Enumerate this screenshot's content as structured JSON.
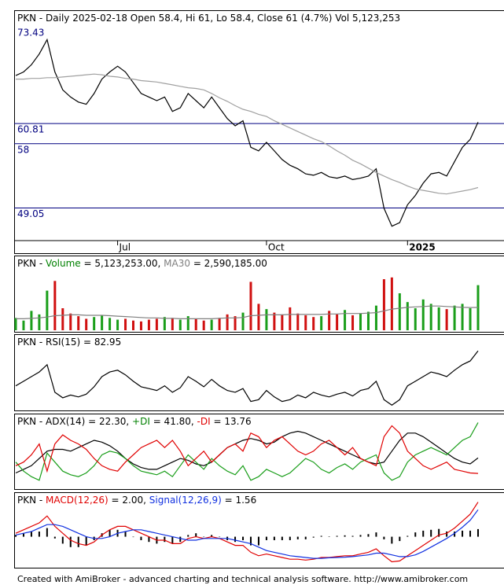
{
  "chart_data": [
    {
      "type": "price",
      "title_parts": [
        {
          "text": "PKN - Daily 2025-02-18 Open 58.4, Hi 61, Lo 58.4, Close 61 (4.7%) Vol 5,123,253",
          "color": "#000000"
        }
      ],
      "categories": [
        null,
        null,
        null,
        null,
        null,
        null,
        null,
        null,
        null,
        null,
        null,
        null,
        null,
        "Jul",
        null,
        null,
        null,
        null,
        null,
        null,
        null,
        null,
        null,
        null,
        null,
        null,
        null,
        null,
        null,
        null,
        null,
        null,
        "Oct",
        null,
        null,
        null,
        null,
        null,
        null,
        null,
        null,
        null,
        null,
        null,
        null,
        null,
        null,
        null,
        null,
        null,
        "2025",
        null,
        null,
        null,
        null,
        null,
        null,
        null,
        null,
        null
      ],
      "ylim": [
        44.5,
        76.6
      ],
      "levels": [
        60.81,
        58,
        49.05
      ],
      "level_color": "#000080",
      "max_label": 73.43,
      "series": [
        {
          "color": "#000000",
          "values": [
            67.5,
            68,
            69,
            70.5,
            72.5,
            68,
            65.5,
            64.5,
            63.8,
            63.5,
            65,
            67,
            68,
            68.8,
            68,
            66.5,
            65,
            64.5,
            64,
            64.5,
            62.5,
            63,
            65,
            64,
            63,
            64.5,
            63,
            61.5,
            60.5,
            61.2,
            57.5,
            57,
            58.2,
            57,
            55.8,
            55,
            54.5,
            53.8,
            53.6,
            54,
            53.4,
            53.2,
            53.5,
            53,
            53.2,
            53.5,
            54.5,
            49,
            46.5,
            47,
            49.5,
            50.8,
            52.5,
            53.8,
            54,
            53.5,
            55.5,
            57.5,
            58.6,
            61
          ]
        },
        {
          "color": "#a0a0a0",
          "values": [
            67,
            67,
            67.1,
            67.1,
            67.2,
            67.2,
            67.3,
            67.4,
            67.5,
            67.6,
            67.7,
            67.6,
            67.4,
            67.3,
            67.1,
            67,
            66.8,
            66.7,
            66.6,
            66.4,
            66.2,
            66,
            65.8,
            65.7,
            65.5,
            65,
            64.4,
            63.9,
            63.3,
            62.8,
            62.5,
            62.1,
            61.8,
            61.2,
            60.7,
            60.2,
            59.7,
            59.2,
            58.7,
            58.3,
            57.7,
            57,
            56.4,
            55.7,
            55.2,
            54.6,
            54,
            53.5,
            53,
            52.6,
            52.1,
            51.7,
            51.5,
            51.3,
            51.1,
            51,
            51.2,
            51.4,
            51.6,
            51.9
          ]
        }
      ]
    },
    {
      "type": "volume",
      "title_parts": [
        {
          "text": "PKN - ",
          "color": "#000000"
        },
        {
          "text": "Volume",
          "color": "#008000"
        },
        {
          "text": " = 5,123,253.00, ",
          "color": "#000000"
        },
        {
          "text": "MA30",
          "color": "#808080"
        },
        {
          "text": " = 2,590,185.00",
          "color": "#000000"
        }
      ],
      "ylim": [
        0,
        6700000
      ],
      "up_color": "#1a9e1a",
      "down_color": "#d01010",
      "series": [
        {
          "style": "bar",
          "values": [
            1400000,
            1100000,
            2200000,
            1800000,
            4500000,
            5600000,
            2500000,
            1900000,
            1600000,
            1300000,
            1500000,
            1700000,
            1400000,
            1200000,
            1300000,
            1100000,
            1000000,
            1200000,
            1300000,
            1500000,
            1400000,
            1200000,
            1600000,
            1300000,
            1100000,
            1200000,
            1400000,
            1800000,
            1600000,
            2000000,
            5500000,
            3000000,
            2400000,
            2000000,
            1800000,
            2600000,
            1900000,
            1700000,
            1500000,
            1600000,
            2200000,
            1800000,
            2300000,
            1700000,
            1900000,
            2100000,
            2800000,
            5800000,
            6000000,
            4200000,
            3200000,
            2500000,
            3500000,
            3000000,
            2600000,
            2400000,
            2800000,
            3000000,
            2500000,
            5123253
          ]
        },
        {
          "style": "line",
          "color": "#808080",
          "values": [
            1300000,
            1300000,
            1350000,
            1400000,
            1500000,
            1650000,
            1700000,
            1750000,
            1750000,
            1700000,
            1700000,
            1700000,
            1650000,
            1600000,
            1550000,
            1500000,
            1450000,
            1400000,
            1400000,
            1350000,
            1350000,
            1300000,
            1300000,
            1300000,
            1300000,
            1300000,
            1350000,
            1400000,
            1400000,
            1450000,
            1650000,
            1700000,
            1750000,
            1750000,
            1750000,
            1800000,
            1800000,
            1800000,
            1800000,
            1800000,
            1850000,
            1850000,
            1900000,
            1900000,
            1900000,
            1950000,
            2000000,
            2200000,
            2400000,
            2500000,
            2600000,
            2650000,
            2700000,
            2750000,
            2750000,
            2700000,
            2650000,
            2600000,
            2580000,
            2590185
          ]
        }
      ]
    },
    {
      "type": "line",
      "title_parts": [
        {
          "text": "PKN - RSI(15) = 82.95",
          "color": "#000000"
        }
      ],
      "ylim": [
        20,
        90
      ],
      "series": [
        {
          "style": "line",
          "color": "#000000",
          "values": [
            45,
            50,
            55,
            60,
            68,
            38,
            32,
            35,
            33,
            36,
            44,
            55,
            60,
            62,
            57,
            50,
            44,
            42,
            40,
            45,
            38,
            43,
            55,
            50,
            44,
            52,
            45,
            40,
            38,
            42,
            28,
            30,
            40,
            33,
            28,
            30,
            35,
            32,
            38,
            35,
            33,
            36,
            38,
            34,
            40,
            42,
            50,
            30,
            24,
            30,
            45,
            50,
            55,
            60,
            58,
            55,
            62,
            68,
            72,
            82.95
          ]
        }
      ]
    },
    {
      "type": "line",
      "title_parts": [
        {
          "text": "PKN - ",
          "color": "#000000"
        },
        {
          "text": "ADX(14)",
          "color": "#000000"
        },
        {
          "text": " = 22.30, ",
          "color": "#000000"
        },
        {
          "text": "+DI",
          "color": "#008000"
        },
        {
          "text": " = 41.80, ",
          "color": "#000000"
        },
        {
          "text": "-DI",
          "color": "#e00000"
        },
        {
          "text": " = 13.76",
          "color": "#000000"
        }
      ],
      "ylim": [
        6,
        45
      ],
      "series": [
        {
          "style": "line",
          "color": "#000000",
          "values": [
            14,
            16,
            18,
            22,
            26,
            27,
            27,
            26,
            28,
            30,
            32,
            31,
            29,
            26,
            22,
            19,
            17,
            16,
            16,
            18,
            20,
            22,
            21,
            19,
            18,
            20,
            24,
            28,
            30,
            32,
            33,
            32,
            30,
            31,
            34,
            36,
            37,
            36,
            34,
            32,
            30,
            28,
            26,
            24,
            22,
            20,
            19,
            20,
            26,
            32,
            36,
            36,
            34,
            31,
            28,
            25,
            22,
            20,
            19,
            22.3
          ]
        },
        {
          "style": "line",
          "color": "#1a9e1a",
          "values": [
            20,
            15,
            12,
            10,
            25,
            20,
            15,
            13,
            12,
            14,
            18,
            24,
            26,
            25,
            22,
            18,
            15,
            14,
            13,
            15,
            12,
            18,
            24,
            20,
            16,
            22,
            18,
            15,
            13,
            18,
            10,
            12,
            16,
            14,
            12,
            14,
            18,
            22,
            20,
            16,
            14,
            17,
            19,
            16,
            20,
            22,
            24,
            14,
            10,
            12,
            20,
            24,
            26,
            28,
            26,
            24,
            28,
            32,
            34,
            41.8
          ]
        },
        {
          "style": "line",
          "color": "#e00000",
          "values": [
            18,
            20,
            24,
            30,
            15,
            30,
            35,
            32,
            30,
            27,
            22,
            18,
            16,
            15,
            20,
            24,
            28,
            30,
            32,
            28,
            32,
            26,
            18,
            22,
            26,
            20,
            24,
            28,
            30,
            26,
            36,
            34,
            28,
            32,
            34,
            30,
            26,
            24,
            26,
            30,
            32,
            28,
            24,
            28,
            22,
            20,
            18,
            34,
            40,
            36,
            26,
            22,
            18,
            16,
            18,
            20,
            16,
            15,
            14,
            13.76
          ]
        }
      ]
    },
    {
      "type": "line",
      "title_parts": [
        {
          "text": "PKN - ",
          "color": "#000000"
        },
        {
          "text": "MACD(12,26)",
          "color": "#e00000"
        },
        {
          "text": " = 2.00, ",
          "color": "#000000"
        },
        {
          "text": "Signal(12,26,9)",
          "color": "#1030e0"
        },
        {
          "text": " = 1.56",
          "color": "#000000"
        }
      ],
      "ylim": [
        -1.7,
        2.3
      ],
      "series": [
        {
          "style": "histogram",
          "color": "#000000",
          "values": [
            0.1,
            0.2,
            0.3,
            0.3,
            0.5,
            -0.1,
            -0.4,
            -0.6,
            -0.6,
            -0.5,
            -0.2,
            0.2,
            0.4,
            0.4,
            0.3,
            0,
            -0.2,
            -0.3,
            -0.4,
            -0.3,
            -0.4,
            -0.3,
            0.1,
            0.2,
            0,
            0.1,
            0,
            -0.2,
            -0.3,
            -0.2,
            -0.5,
            -0.5,
            -0.2,
            -0.2,
            -0.2,
            -0.2,
            -0.15,
            -0.15,
            -0.05,
            0.05,
            0.02,
            0.05,
            0.08,
            0.05,
            0.1,
            0.15,
            0.25,
            -0.15,
            -0.4,
            -0.25,
            0.05,
            0.25,
            0.35,
            0.4,
            0.45,
            0.3,
            0.3,
            0.35,
            0.35,
            0.44
          ]
        },
        {
          "style": "line",
          "color": "#e00000",
          "values": [
            0.2,
            0.4,
            0.6,
            0.8,
            1.2,
            0.6,
            0.2,
            -0.2,
            -0.4,
            -0.5,
            -0.3,
            0.1,
            0.4,
            0.6,
            0.6,
            0.4,
            0.2,
            0,
            -0.2,
            -0.2,
            -0.4,
            -0.4,
            -0.1,
            0,
            -0.1,
            0,
            -0.1,
            -0.3,
            -0.5,
            -0.5,
            -0.9,
            -1.1,
            -1,
            -1.1,
            -1.2,
            -1.3,
            -1.3,
            -1.35,
            -1.3,
            -1.2,
            -1.2,
            -1.15,
            -1.1,
            -1.1,
            -1,
            -0.9,
            -0.7,
            -1.1,
            -1.45,
            -1.4,
            -1.1,
            -0.8,
            -0.5,
            -0.2,
            0.1,
            0.2,
            0.5,
            0.9,
            1.3,
            2
          ]
        },
        {
          "style": "line",
          "color": "#1030e0",
          "values": [
            0.1,
            0.2,
            0.3,
            0.5,
            0.7,
            0.7,
            0.6,
            0.4,
            0.2,
            0,
            -0.1,
            -0.1,
            0,
            0.2,
            0.3,
            0.4,
            0.4,
            0.3,
            0.2,
            0.1,
            0,
            -0.1,
            -0.2,
            -0.2,
            -0.1,
            -0.1,
            -0.1,
            -0.1,
            -0.2,
            -0.3,
            -0.4,
            -0.6,
            -0.8,
            -0.9,
            -1,
            -1.1,
            -1.15,
            -1.2,
            -1.25,
            -1.25,
            -1.22,
            -1.2,
            -1.18,
            -1.15,
            -1.1,
            -1.05,
            -0.95,
            -0.95,
            -1.05,
            -1.15,
            -1.15,
            -1.05,
            -0.85,
            -0.6,
            -0.35,
            -0.1,
            0.2,
            0.55,
            0.95,
            1.56
          ]
        }
      ]
    }
  ],
  "footer": "Created with AmiBroker - advanced charting and technical analysis software. http://www.amibroker.com"
}
